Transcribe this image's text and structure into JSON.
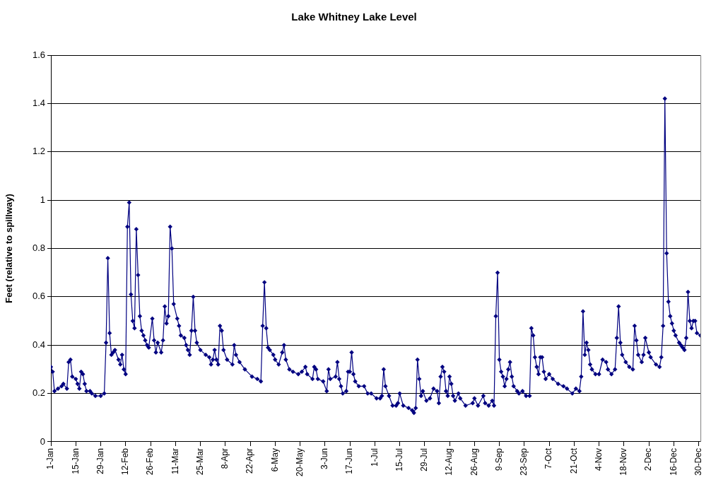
{
  "chart_data": {
    "type": "line",
    "title": "Lake Whitney Lake Level",
    "ylabel": "Feet (relative to spillway)",
    "x": [
      "--01-01",
      "--01-02",
      "--01-03",
      "--01-05",
      "--01-07",
      "--01-08",
      "--01-10",
      "--01-11",
      "--01-12",
      "--01-13",
      "--01-15",
      "--01-16",
      "--01-17",
      "--01-18",
      "--01-19",
      "--01-20",
      "--01-21",
      "--01-23",
      "--01-24",
      "--01-26",
      "--01-29",
      "--01-31",
      "--02-01",
      "--02-02",
      "--02-03",
      "--02-04",
      "--02-05",
      "--02-06",
      "--02-08",
      "--02-09",
      "--02-10",
      "--02-11",
      "--02-12",
      "--02-13",
      "--02-14",
      "--02-15",
      "--02-16",
      "--02-17",
      "--02-18",
      "--02-19",
      "--02-20",
      "--02-21",
      "--02-22",
      "--02-23",
      "--02-24",
      "--02-25",
      "--02-27",
      "--02-28",
      "--02-29",
      "--03-01",
      "--03-03",
      "--03-04",
      "--03-05",
      "--03-06",
      "--03-07",
      "--03-08",
      "--03-09",
      "--03-10",
      "--03-12",
      "--03-13",
      "--03-14",
      "--03-16",
      "--03-17",
      "--03-18",
      "--03-19",
      "--03-20",
      "--03-21",
      "--03-22",
      "--03-23",
      "--03-25",
      "--03-28",
      "--03-30",
      "--03-31",
      "--04-01",
      "--04-02",
      "--04-03",
      "--04-04",
      "--04-05",
      "--04-06",
      "--04-07",
      "--04-09",
      "--04-12",
      "--04-13",
      "--04-14",
      "--04-16",
      "--04-19",
      "--04-23",
      "--04-26",
      "--04-28",
      "--04-29",
      "--04-30",
      "--05-01",
      "--05-02",
      "--05-03",
      "--05-05",
      "--05-06",
      "--05-08",
      "--05-10",
      "--05-11",
      "--05-12",
      "--05-14",
      "--05-16",
      "--05-19",
      "--05-21",
      "--05-23",
      "--05-24",
      "--05-27",
      "--05-28",
      "--05-29",
      "--05-30",
      "--06-02",
      "--06-04",
      "--06-05",
      "--06-06",
      "--06-09",
      "--06-10",
      "--06-11",
      "--06-12",
      "--06-13",
      "--06-15",
      "--06-16",
      "--06-17",
      "--06-18",
      "--06-19",
      "--06-20",
      "--06-22",
      "--06-25",
      "--06-27",
      "--06-29",
      "--07-02",
      "--07-04",
      "--07-05",
      "--07-06",
      "--07-07",
      "--07-09",
      "--07-11",
      "--07-13",
      "--07-14",
      "--07-15",
      "--07-17",
      "--07-20",
      "--07-22",
      "--07-23",
      "--07-24",
      "--07-25",
      "--07-26",
      "--07-27",
      "--07-28",
      "--07-30",
      "--08-01",
      "--08-03",
      "--08-05",
      "--08-06",
      "--08-07",
      "--08-08",
      "--08-09",
      "--08-10",
      "--08-11",
      "--08-12",
      "--08-13",
      "--08-14",
      "--08-15",
      "--08-17",
      "--08-18",
      "--08-21",
      "--08-25",
      "--08-26",
      "--08-28",
      "--08-31",
      "--09-01",
      "--09-03",
      "--09-05",
      "--09-06",
      "--09-07",
      "--09-08",
      "--09-09",
      "--09-10",
      "--09-11",
      "--09-12",
      "--09-13",
      "--09-14",
      "--09-15",
      "--09-16",
      "--09-17",
      "--09-19",
      "--09-20",
      "--09-22",
      "--09-24",
      "--09-26",
      "--09-27",
      "--09-28",
      "--09-29",
      "--09-30",
      "--10-01",
      "--10-02",
      "--10-03",
      "--10-04",
      "--10-05",
      "--10-07",
      "--10-09",
      "--10-12",
      "--10-15",
      "--10-17",
      "--10-20",
      "--10-22",
      "--10-24",
      "--10-25",
      "--10-26",
      "--10-27",
      "--10-28",
      "--10-29",
      "--10-30",
      "--10-31",
      "--11-02",
      "--11-04",
      "--11-06",
      "--11-08",
      "--11-09",
      "--11-11",
      "--11-13",
      "--11-14",
      "--11-15",
      "--11-16",
      "--11-17",
      "--11-19",
      "--11-21",
      "--11-23",
      "--11-24",
      "--11-25",
      "--11-26",
      "--11-28",
      "--11-29",
      "--11-30",
      "--12-02",
      "--12-03",
      "--12-06",
      "--12-08",
      "--12-09",
      "--12-10",
      "--12-11",
      "--12-12",
      "--12-13",
      "--12-14",
      "--12-15",
      "--12-16",
      "--12-17",
      "--12-19",
      "--12-20",
      "--12-21",
      "--12-22",
      "--12-23",
      "--12-24",
      "--12-25",
      "--12-26",
      "--12-27",
      "--12-28",
      "--12-29",
      "--12-31"
    ],
    "series": [
      {
        "color": "#000080",
        "values": [
          0.31,
          0.29,
          0.21,
          0.22,
          0.23,
          0.24,
          0.22,
          0.33,
          0.34,
          0.27,
          0.26,
          0.24,
          0.22,
          0.29,
          0.28,
          0.24,
          0.21,
          0.21,
          0.2,
          0.19,
          0.19,
          0.2,
          0.41,
          0.76,
          0.45,
          0.36,
          0.37,
          0.38,
          0.34,
          0.32,
          0.36,
          0.3,
          0.28,
          0.89,
          0.99,
          0.61,
          0.5,
          0.47,
          0.88,
          0.69,
          0.52,
          0.46,
          0.44,
          0.42,
          0.4,
          0.39,
          0.51,
          0.42,
          0.37,
          0.41,
          0.37,
          0.42,
          0.56,
          0.49,
          0.52,
          0.89,
          0.8,
          0.57,
          0.51,
          0.48,
          0.44,
          0.43,
          0.4,
          0.38,
          0.36,
          0.46,
          0.6,
          0.46,
          0.41,
          0.38,
          0.36,
          0.35,
          0.32,
          0.34,
          0.38,
          0.34,
          0.32,
          0.48,
          0.46,
          0.38,
          0.34,
          0.32,
          0.4,
          0.36,
          0.33,
          0.3,
          0.27,
          0.26,
          0.25,
          0.48,
          0.66,
          0.47,
          0.39,
          0.38,
          0.36,
          0.34,
          0.32,
          0.37,
          0.4,
          0.34,
          0.3,
          0.29,
          0.28,
          0.29,
          0.31,
          0.28,
          0.26,
          0.31,
          0.3,
          0.26,
          0.25,
          0.21,
          0.3,
          0.26,
          0.27,
          0.33,
          0.26,
          0.23,
          0.2,
          0.21,
          0.29,
          0.29,
          0.37,
          0.28,
          0.25,
          0.23,
          0.23,
          0.2,
          0.2,
          0.18,
          0.18,
          0.19,
          0.3,
          0.23,
          0.19,
          0.15,
          0.15,
          0.16,
          0.2,
          0.15,
          0.14,
          0.13,
          0.12,
          0.14,
          0.34,
          0.26,
          0.19,
          0.21,
          0.17,
          0.18,
          0.22,
          0.21,
          0.16,
          0.27,
          0.31,
          0.29,
          0.21,
          0.19,
          0.27,
          0.24,
          0.19,
          0.17,
          0.2,
          0.18,
          0.15,
          0.16,
          0.18,
          0.15,
          0.19,
          0.16,
          0.15,
          0.17,
          0.15,
          0.52,
          0.7,
          0.34,
          0.29,
          0.27,
          0.23,
          0.26,
          0.3,
          0.33,
          0.27,
          0.23,
          0.21,
          0.2,
          0.21,
          0.19,
          0.19,
          0.47,
          0.44,
          0.35,
          0.31,
          0.28,
          0.35,
          0.35,
          0.29,
          0.26,
          0.28,
          0.26,
          0.24,
          0.23,
          0.22,
          0.2,
          0.22,
          0.21,
          0.27,
          0.54,
          0.36,
          0.41,
          0.38,
          0.32,
          0.3,
          0.28,
          0.28,
          0.34,
          0.33,
          0.3,
          0.28,
          0.3,
          0.43,
          0.56,
          0.41,
          0.36,
          0.33,
          0.31,
          0.3,
          0.48,
          0.42,
          0.36,
          0.33,
          0.36,
          0.43,
          0.37,
          0.35,
          0.32,
          0.31,
          0.35,
          0.48,
          1.42,
          0.78,
          0.58,
          0.52,
          0.49,
          0.46,
          0.44,
          0.41,
          0.4,
          0.39,
          0.38,
          0.43,
          0.62,
          0.5,
          0.47,
          0.5,
          0.5,
          0.45,
          0.44
        ]
      }
    ],
    "xlim": [
      "--01-01",
      "--12-31"
    ],
    "xticks": [
      {
        "value": "--01-01",
        "label": "1-Jan"
      },
      {
        "value": "--01-15",
        "label": "15-Jan"
      },
      {
        "value": "--01-29",
        "label": "29-Jan"
      },
      {
        "value": "--02-12",
        "label": "12-Feb"
      },
      {
        "value": "--02-26",
        "label": "26-Feb"
      },
      {
        "value": "--03-11",
        "label": "11-Mar"
      },
      {
        "value": "--03-25",
        "label": "25-Mar"
      },
      {
        "value": "--04-08",
        "label": "8-Apr"
      },
      {
        "value": "--04-22",
        "label": "22-Apr"
      },
      {
        "value": "--05-06",
        "label": "6-May"
      },
      {
        "value": "--05-20",
        "label": "20-May"
      },
      {
        "value": "--06-03",
        "label": "3-Jun"
      },
      {
        "value": "--06-17",
        "label": "17-Jun"
      },
      {
        "value": "--07-01",
        "label": "1-Jul"
      },
      {
        "value": "--07-15",
        "label": "15-Jul"
      },
      {
        "value": "--07-29",
        "label": "29-Jul"
      },
      {
        "value": "--08-12",
        "label": "12-Aug"
      },
      {
        "value": "--08-26",
        "label": "26-Aug"
      },
      {
        "value": "--09-09",
        "label": "9-Sep"
      },
      {
        "value": "--09-23",
        "label": "23-Sep"
      },
      {
        "value": "--10-07",
        "label": "7-Oct"
      },
      {
        "value": "--10-21",
        "label": "21-Oct"
      },
      {
        "value": "--11-04",
        "label": "4-Nov"
      },
      {
        "value": "--11-18",
        "label": "18-Nov"
      },
      {
        "value": "--12-02",
        "label": "2-Dec"
      },
      {
        "value": "--12-16",
        "label": "16-Dec"
      },
      {
        "value": "--12-30",
        "label": "30-Dec"
      }
    ],
    "ylim": [
      0,
      1.6
    ],
    "yticks": [
      0,
      0.2,
      0.4,
      0.6,
      0.8,
      1,
      1.2,
      1.4,
      1.6
    ],
    "grid": "y",
    "legend": false,
    "marker": "diamond",
    "line_style": "solid"
  }
}
